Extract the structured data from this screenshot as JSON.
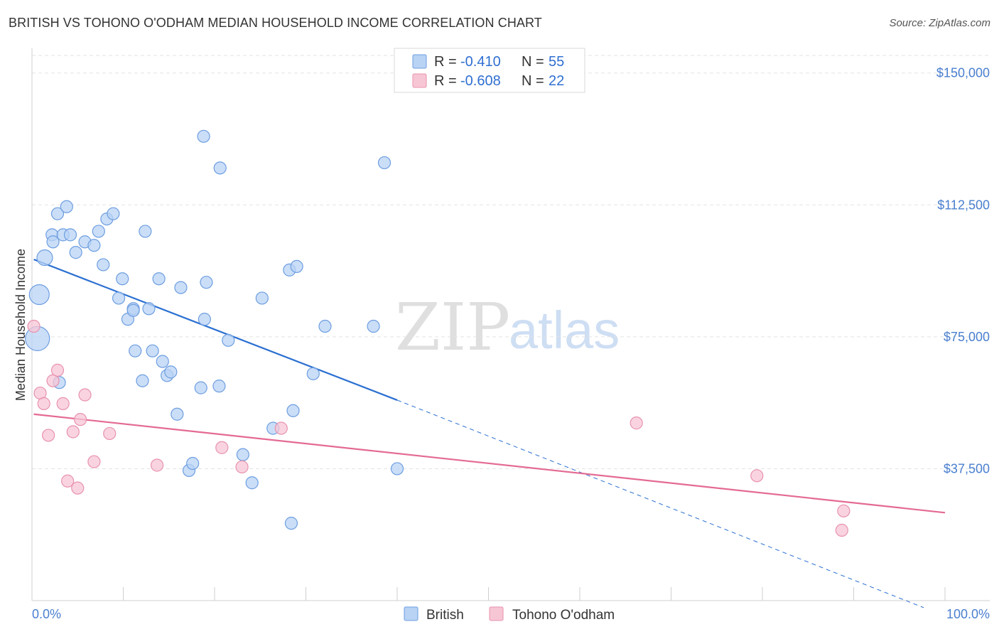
{
  "header": {
    "title": "BRITISH VS TOHONO O'ODHAM MEDIAN HOUSEHOLD INCOME CORRELATION CHART",
    "source": "Source: ZipAtlas.com"
  },
  "watermark": {
    "zip": "ZIP",
    "atlas": "atlas"
  },
  "legend": {
    "rows": [
      {
        "r_label": "R = ",
        "r_value": "-0.410",
        "n_label": "N = ",
        "n_value": "55"
      },
      {
        "r_label": "R = ",
        "r_value": "-0.608",
        "n_label": "N = ",
        "n_value": "22"
      }
    ]
  },
  "colors": {
    "british_fill": "#b9d3f5",
    "british_stroke": "#6d9ee0",
    "british_line": "#2a6fd1",
    "tohono_fill": "#f7c6d5",
    "tohono_stroke": "#e892ad",
    "tohono_line": "#e46a93",
    "grid": "#e3e3e3",
    "tick_text": "#4a7fcf"
  },
  "chart_data": {
    "type": "scatter",
    "title": "BRITISH VS TOHONO O'ODHAM MEDIAN HOUSEHOLD INCOME CORRELATION CHART",
    "xlabel": "",
    "ylabel": "Median Household Income",
    "xlim": [
      0,
      100
    ],
    "ylim": [
      0,
      155000
    ],
    "x_tick_labels": [
      "0.0%",
      "100.0%"
    ],
    "y_ticks": [
      {
        "value": 37500,
        "label": "$37,500"
      },
      {
        "value": 75000,
        "label": "$75,000"
      },
      {
        "value": 112500,
        "label": "$112,500"
      },
      {
        "value": 150000,
        "label": "$150,000"
      }
    ],
    "grid": true,
    "legend_position": "top-center",
    "series": [
      {
        "name": "British",
        "r": -0.41,
        "n": 55,
        "trend": {
          "x0": 0.2,
          "y0": 97000,
          "x1": 40,
          "y1": 57000,
          "dash_to_x": 100,
          "dash_to_y": -2000
        },
        "points": [
          {
            "x": 1.4,
            "y": 97500,
            "s": 2
          },
          {
            "x": 0.8,
            "y": 87000,
            "s": 3
          },
          {
            "x": 0.6,
            "y": 74500,
            "s": 4
          },
          {
            "x": 2.2,
            "y": 104000,
            "s": 1
          },
          {
            "x": 2.3,
            "y": 102000,
            "s": 1
          },
          {
            "x": 2.8,
            "y": 110000,
            "s": 1
          },
          {
            "x": 3.4,
            "y": 104000,
            "s": 1
          },
          {
            "x": 3.8,
            "y": 112000,
            "s": 1
          },
          {
            "x": 4.2,
            "y": 104000,
            "s": 1
          },
          {
            "x": 4.8,
            "y": 99000,
            "s": 1
          },
          {
            "x": 5.8,
            "y": 102000,
            "s": 1
          },
          {
            "x": 6.8,
            "y": 101000,
            "s": 1
          },
          {
            "x": 7.3,
            "y": 105000,
            "s": 1
          },
          {
            "x": 7.8,
            "y": 95500,
            "s": 1
          },
          {
            "x": 8.2,
            "y": 108500,
            "s": 1
          },
          {
            "x": 8.9,
            "y": 110000,
            "s": 1
          },
          {
            "x": 9.5,
            "y": 86000,
            "s": 1
          },
          {
            "x": 9.9,
            "y": 91500,
            "s": 1
          },
          {
            "x": 10.5,
            "y": 80000,
            "s": 1
          },
          {
            "x": 11.1,
            "y": 83000,
            "s": 1
          },
          {
            "x": 11.1,
            "y": 82500,
            "s": 1
          },
          {
            "x": 12.4,
            "y": 105000,
            "s": 1
          },
          {
            "x": 12.8,
            "y": 83000,
            "s": 1
          },
          {
            "x": 11.3,
            "y": 71000,
            "s": 1
          },
          {
            "x": 13.2,
            "y": 71000,
            "s": 1
          },
          {
            "x": 13.9,
            "y": 91500,
            "s": 1
          },
          {
            "x": 14.3,
            "y": 68000,
            "s": 1
          },
          {
            "x": 14.8,
            "y": 64000,
            "s": 1
          },
          {
            "x": 15.2,
            "y": 65000,
            "s": 1
          },
          {
            "x": 12.1,
            "y": 62500,
            "s": 1
          },
          {
            "x": 16.3,
            "y": 89000,
            "s": 1
          },
          {
            "x": 15.9,
            "y": 53000,
            "s": 1
          },
          {
            "x": 17.2,
            "y": 37000,
            "s": 1
          },
          {
            "x": 17.6,
            "y": 39000,
            "s": 1
          },
          {
            "x": 18.8,
            "y": 132000,
            "s": 1
          },
          {
            "x": 19.1,
            "y": 90500,
            "s": 1
          },
          {
            "x": 18.9,
            "y": 80000,
            "s": 1
          },
          {
            "x": 18.5,
            "y": 60500,
            "s": 1
          },
          {
            "x": 20.5,
            "y": 61000,
            "s": 1
          },
          {
            "x": 20.6,
            "y": 123000,
            "s": 1
          },
          {
            "x": 21.5,
            "y": 74000,
            "s": 1
          },
          {
            "x": 23.1,
            "y": 41500,
            "s": 1
          },
          {
            "x": 24.1,
            "y": 33500,
            "s": 1
          },
          {
            "x": 25.2,
            "y": 86000,
            "s": 1
          },
          {
            "x": 26.4,
            "y": 49000,
            "s": 1
          },
          {
            "x": 28.2,
            "y": 94000,
            "s": 1
          },
          {
            "x": 29.0,
            "y": 95000,
            "s": 1
          },
          {
            "x": 28.6,
            "y": 54000,
            "s": 1
          },
          {
            "x": 28.4,
            "y": 22000,
            "s": 1
          },
          {
            "x": 30.8,
            "y": 64500,
            "s": 1
          },
          {
            "x": 32.1,
            "y": 78000,
            "s": 1
          },
          {
            "x": 37.4,
            "y": 78000,
            "s": 1
          },
          {
            "x": 38.6,
            "y": 124500,
            "s": 1
          },
          {
            "x": 40.0,
            "y": 37500,
            "s": 1
          },
          {
            "x": 3.0,
            "y": 62000,
            "s": 1
          }
        ]
      },
      {
        "name": "Tohono O'odham",
        "r": -0.608,
        "n": 22,
        "trend": {
          "x0": 0.2,
          "y0": 53000,
          "x1": 100,
          "y1": 25000
        },
        "points": [
          {
            "x": 0.2,
            "y": 78000,
            "s": 1
          },
          {
            "x": 0.9,
            "y": 59000,
            "s": 1
          },
          {
            "x": 1.3,
            "y": 56000,
            "s": 1
          },
          {
            "x": 1.8,
            "y": 47000,
            "s": 1
          },
          {
            "x": 2.3,
            "y": 62500,
            "s": 1
          },
          {
            "x": 2.8,
            "y": 65500,
            "s": 1
          },
          {
            "x": 3.4,
            "y": 56000,
            "s": 1
          },
          {
            "x": 3.9,
            "y": 34000,
            "s": 1
          },
          {
            "x": 4.5,
            "y": 48000,
            "s": 1
          },
          {
            "x": 5.0,
            "y": 32000,
            "s": 1
          },
          {
            "x": 5.3,
            "y": 51500,
            "s": 1
          },
          {
            "x": 5.8,
            "y": 58500,
            "s": 1
          },
          {
            "x": 6.8,
            "y": 39500,
            "s": 1
          },
          {
            "x": 8.5,
            "y": 47500,
            "s": 1
          },
          {
            "x": 13.7,
            "y": 38500,
            "s": 1
          },
          {
            "x": 20.8,
            "y": 43500,
            "s": 1
          },
          {
            "x": 23.0,
            "y": 38000,
            "s": 1
          },
          {
            "x": 27.3,
            "y": 49000,
            "s": 1
          },
          {
            "x": 66.2,
            "y": 50500,
            "s": 1
          },
          {
            "x": 79.4,
            "y": 35500,
            "s": 1
          },
          {
            "x": 88.9,
            "y": 25500,
            "s": 1
          },
          {
            "x": 88.7,
            "y": 20000,
            "s": 1
          }
        ]
      }
    ]
  },
  "bottom_legend": [
    {
      "label": "British"
    },
    {
      "label": "Tohono O'odham"
    }
  ]
}
